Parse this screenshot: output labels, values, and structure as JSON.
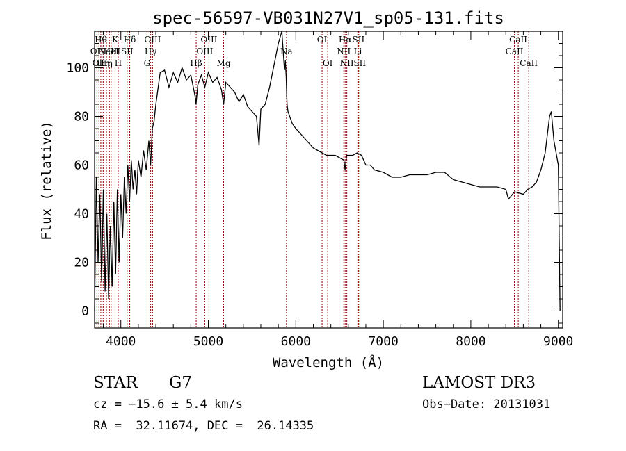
{
  "chart_data": {
    "type": "line",
    "title": "spec-56597-VB031N27V1_sp05-131.fits",
    "xlabel": "Wavelength (Å)",
    "ylabel": "Flux (relative)",
    "xlim": [
      3700,
      9050
    ],
    "ylim": [
      -7,
      115
    ],
    "x_ticks": [
      4000,
      5000,
      6000,
      7000,
      8000,
      9000
    ],
    "x_tick_labels": [
      "4000",
      "5000",
      "6000",
      "7000",
      "8000",
      "9000"
    ],
    "y_ticks": [
      0,
      20,
      40,
      60,
      80,
      100
    ],
    "y_tick_labels": [
      "0",
      "20",
      "40",
      "60",
      "80",
      "100"
    ],
    "grid": false,
    "line_color": "#000000",
    "marker_color": "#8b0000",
    "series": [
      {
        "x": [
          3700,
          3720,
          3740,
          3760,
          3780,
          3800,
          3820,
          3840,
          3860,
          3880,
          3900,
          3920,
          3940,
          3960,
          3980,
          4000,
          4020,
          4040,
          4060,
          4080,
          4100,
          4120,
          4140,
          4160,
          4180,
          4200,
          4230,
          4260,
          4290,
          4320,
          4340,
          4360,
          4380,
          4400,
          4450,
          4500,
          4550,
          4600,
          4650,
          4700,
          4750,
          4800,
          4850,
          4860,
          4880,
          4920,
          4960,
          5000,
          5050,
          5100,
          5150,
          5175,
          5200,
          5250,
          5300,
          5350,
          5400,
          5450,
          5500,
          5550,
          5580,
          5600,
          5650,
          5700,
          5750,
          5800,
          5840,
          5870,
          5880,
          5890,
          5895,
          5900,
          5910,
          5930,
          5960,
          6000,
          6050,
          6100,
          6150,
          6200,
          6250,
          6300,
          6350,
          6400,
          6450,
          6500,
          6550,
          6563,
          6580,
          6600,
          6650,
          6700,
          6750,
          6800,
          6850,
          6900,
          7000,
          7100,
          7150,
          7200,
          7300,
          7400,
          7500,
          7600,
          7700,
          7800,
          7900,
          8000,
          8100,
          8200,
          8300,
          8400,
          8430,
          8500,
          8600,
          8650,
          8700,
          8750,
          8800,
          8850,
          8900,
          8920,
          8950,
          9000,
          9020
        ],
        "y": [
          0,
          55,
          20,
          48,
          12,
          50,
          8,
          40,
          5,
          35,
          10,
          45,
          15,
          50,
          20,
          48,
          30,
          55,
          40,
          60,
          45,
          62,
          50,
          58,
          48,
          62,
          55,
          66,
          58,
          70,
          60,
          75,
          78,
          85,
          98,
          99,
          92,
          98,
          94,
          100,
          95,
          97,
          88,
          85,
          93,
          97,
          92,
          98,
          94,
          96,
          91,
          85,
          94,
          92,
          90,
          86,
          89,
          84,
          82,
          80,
          68,
          83,
          85,
          92,
          101,
          110,
          115,
          99,
          103,
          96,
          90,
          85,
          82,
          80,
          77,
          75,
          73,
          71,
          69,
          67,
          66,
          65,
          64,
          64,
          64,
          63,
          62,
          58,
          64,
          64,
          64,
          65,
          64,
          60,
          60,
          58,
          57,
          55,
          55,
          55,
          56,
          56,
          56,
          57,
          57,
          54,
          53,
          52,
          51,
          51,
          51,
          50,
          46,
          49,
          48,
          50,
          51,
          53,
          58,
          65,
          80,
          82,
          70,
          60,
          0
        ]
      }
    ],
    "line_markers": [
      {
        "wavelength": 3727,
        "label": "OII",
        "row": 2
      },
      {
        "wavelength": 3750,
        "label": "OII",
        "row": 3
      },
      {
        "wavelength": 3771,
        "label": "Hθ",
        "row": 1
      },
      {
        "wavelength": 3798,
        "label": "Hη",
        "row": 3
      },
      {
        "wavelength": 3835,
        "label": "Hη",
        "row": 3
      },
      {
        "wavelength": 3869,
        "label": "NeIII",
        "row": 2
      },
      {
        "wavelength": 3889,
        "label": "HeI",
        "row": 2
      },
      {
        "wavelength": 3934,
        "label": "K",
        "row": 1
      },
      {
        "wavelength": 3970,
        "label": "H",
        "row": 3
      },
      {
        "wavelength": 4072,
        "label": "SII",
        "row": 2
      },
      {
        "wavelength": 4102,
        "label": "Hδ",
        "row": 1
      },
      {
        "wavelength": 4300,
        "label": "G",
        "row": 3
      },
      {
        "wavelength": 4341,
        "label": "Hγ",
        "row": 2
      },
      {
        "wavelength": 4363,
        "label": "OIII",
        "row": 1
      },
      {
        "wavelength": 4861,
        "label": "Hβ",
        "row": 3
      },
      {
        "wavelength": 4959,
        "label": "OIII",
        "row": 2
      },
      {
        "wavelength": 5007,
        "label": "OIII",
        "row": 1
      },
      {
        "wavelength": 5175,
        "label": "Mg",
        "row": 3
      },
      {
        "wavelength": 5893,
        "label": "Na",
        "row": 2
      },
      {
        "wavelength": 6300,
        "label": "OI",
        "row": 1
      },
      {
        "wavelength": 6364,
        "label": "OI",
        "row": 3
      },
      {
        "wavelength": 6548,
        "label": "NII",
        "row": 2
      },
      {
        "wavelength": 6563,
        "label": "Hα",
        "row": 1
      },
      {
        "wavelength": 6583,
        "label": "NII",
        "row": 3
      },
      {
        "wavelength": 6708,
        "label": "Li",
        "row": 2
      },
      {
        "wavelength": 6716,
        "label": "SII",
        "row": 1
      },
      {
        "wavelength": 6731,
        "label": "SII",
        "row": 3
      },
      {
        "wavelength": 8498,
        "label": "CaII",
        "row": 2
      },
      {
        "wavelength": 8542,
        "label": "CaII",
        "row": 1
      },
      {
        "wavelength": 8662,
        "label": "CaII",
        "row": 3
      }
    ]
  },
  "footer": {
    "object_class": "STAR",
    "subclass": "G7",
    "survey": "LAMOST DR3",
    "cz_line": "cz = −15.6 ± 5.4 km/s",
    "obs_date_line": "Obs−Date: 20131031",
    "radec_line": "RA =  32.11674, DEC =  26.14335"
  }
}
